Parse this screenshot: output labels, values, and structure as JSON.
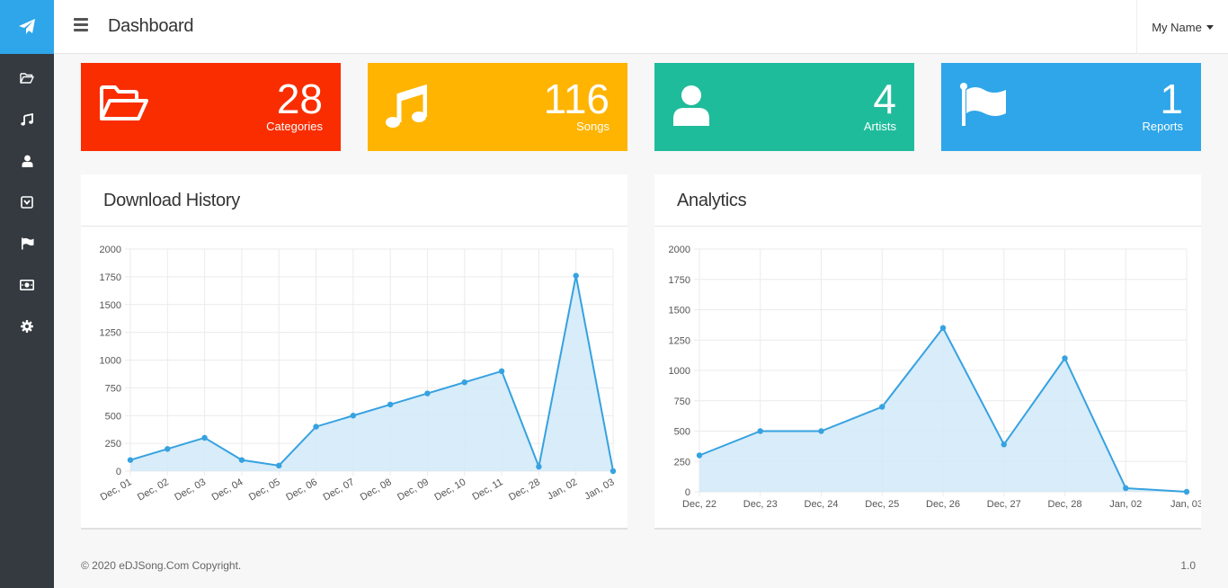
{
  "header": {
    "page_title": "Dashboard",
    "user_name": "My Name"
  },
  "sidebar": {
    "brand_icon": "paper-plane-icon",
    "items": [
      {
        "icon": "folder-open-icon"
      },
      {
        "icon": "music-icon"
      },
      {
        "icon": "user-icon"
      },
      {
        "icon": "archive-icon"
      },
      {
        "icon": "flag-icon"
      },
      {
        "icon": "money-icon"
      },
      {
        "icon": "gear-icon"
      }
    ]
  },
  "stats": [
    {
      "value": "28",
      "label": "Categories",
      "color": "#f92d00",
      "icon": "folder-open-icon"
    },
    {
      "value": "116",
      "label": "Songs",
      "color": "#feb400",
      "icon": "music-icon"
    },
    {
      "value": "4",
      "label": "Artists",
      "color": "#1fbc9b",
      "icon": "user-icon"
    },
    {
      "value": "1",
      "label": "Reports",
      "color": "#2ea6e9",
      "icon": "flag-icon"
    }
  ],
  "panels": {
    "download_history_title": "Download History",
    "analytics_title": "Analytics"
  },
  "chart_data": [
    {
      "type": "area",
      "title": "Download History",
      "categories": [
        "Dec, 01",
        "Dec, 02",
        "Dec, 03",
        "Dec, 04",
        "Dec, 05",
        "Dec, 06",
        "Dec, 07",
        "Dec, 08",
        "Dec, 09",
        "Dec, 10",
        "Dec, 11",
        "Dec, 28",
        "Jan, 02",
        "Jan, 03"
      ],
      "values": [
        100,
        200,
        300,
        100,
        50,
        400,
        500,
        600,
        700,
        800,
        900,
        40,
        1760,
        0
      ],
      "ylim": [
        0,
        2000
      ],
      "yticks": [
        0,
        250,
        500,
        750,
        1000,
        1250,
        1500,
        1750,
        2000
      ],
      "grid": true,
      "color": "#36a2e0",
      "fill": "#d4eaf8"
    },
    {
      "type": "area",
      "title": "Analytics",
      "categories": [
        "Dec, 22",
        "Dec, 23",
        "Dec, 24",
        "Dec, 25",
        "Dec, 26",
        "Dec, 27",
        "Dec, 28",
        "Jan, 02",
        "Jan, 03"
      ],
      "values": [
        300,
        500,
        500,
        700,
        1350,
        390,
        1100,
        30,
        0
      ],
      "ylim": [
        0,
        2000
      ],
      "yticks": [
        0,
        250,
        500,
        750,
        1000,
        1250,
        1500,
        1750,
        2000
      ],
      "grid": true,
      "color": "#36a2e0",
      "fill": "#d4eaf8"
    }
  ],
  "footer": {
    "copyright": "© 2020 eDJSong.Com Copyright.",
    "version": "1.0"
  }
}
